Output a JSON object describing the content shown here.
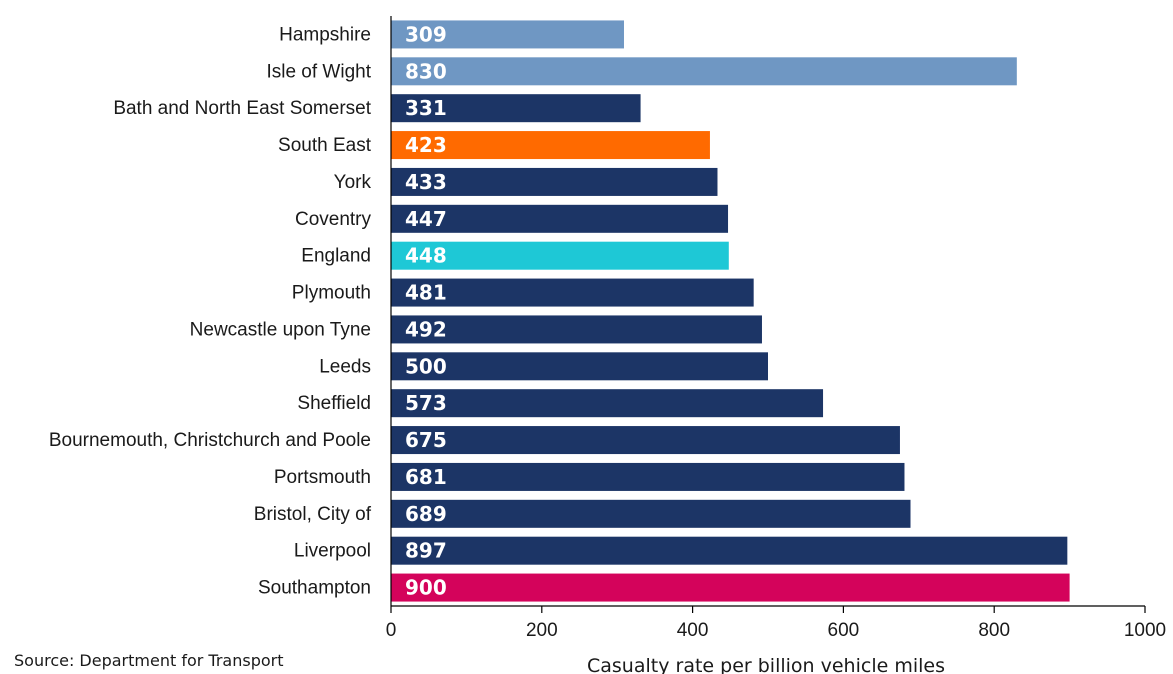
{
  "source_note": "Source: Department for Transport",
  "chart_data": {
    "type": "bar",
    "orientation": "horizontal",
    "categories": [
      "Hampshire",
      "Isle of Wight",
      "Bath and North East Somerset",
      "South East",
      "York",
      "Coventry",
      "England",
      "Plymouth",
      "Newcastle upon Tyne",
      "Leeds",
      "Sheffield",
      "Bournemouth, Christchurch and Poole",
      "Portsmouth",
      "Bristol, City of",
      "Liverpool",
      "Southampton"
    ],
    "values": [
      309,
      830,
      331,
      423,
      433,
      447,
      448,
      481,
      492,
      500,
      573,
      675,
      681,
      689,
      897,
      900
    ],
    "bar_colors": [
      "#6f97c3",
      "#6f97c3",
      "#1c3566",
      "#ff6a00",
      "#1c3566",
      "#1c3566",
      "#1ec8d6",
      "#1c3566",
      "#1c3566",
      "#1c3566",
      "#1c3566",
      "#1c3566",
      "#1c3566",
      "#1c3566",
      "#1c3566",
      "#d4035b"
    ],
    "data_labels": true,
    "xlabel": "Casualty rate per billion vehicle miles",
    "xlim": [
      0,
      1000
    ],
    "xticks": [
      0,
      200,
      400,
      600,
      800,
      1000
    ],
    "grid": false,
    "legend": "none"
  }
}
